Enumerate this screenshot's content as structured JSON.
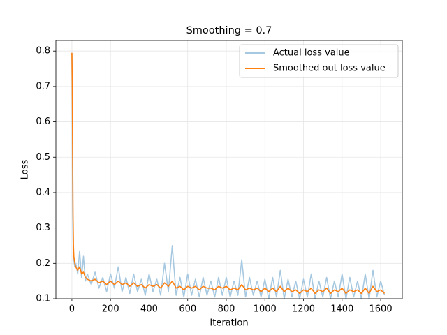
{
  "chart_data": {
    "type": "line",
    "title": "Smoothing = 0.7",
    "x_label": "Iteration",
    "y_label": "Loss",
    "x": [
      0,
      2,
      4,
      6,
      8,
      10,
      15,
      20,
      30,
      40,
      50,
      60,
      70,
      80,
      100,
      120,
      140,
      160,
      180,
      200,
      220,
      240,
      260,
      280,
      300,
      320,
      340,
      360,
      380,
      400,
      420,
      440,
      460,
      480,
      500,
      520,
      540,
      560,
      580,
      600,
      620,
      640,
      660,
      680,
      700,
      720,
      740,
      760,
      780,
      800,
      820,
      840,
      860,
      880,
      900,
      920,
      940,
      960,
      980,
      1000,
      1020,
      1040,
      1060,
      1080,
      1100,
      1120,
      1140,
      1160,
      1180,
      1200,
      1220,
      1240,
      1260,
      1280,
      1300,
      1320,
      1340,
      1360,
      1380,
      1400,
      1420,
      1440,
      1460,
      1480,
      1500,
      1520,
      1540,
      1560,
      1580,
      1600,
      1620
    ],
    "series": [
      {
        "name": "Actual loss value",
        "color": "#a6c8e0",
        "values": [
          0.795,
          0.55,
          0.35,
          0.27,
          0.23,
          0.21,
          0.19,
          0.2,
          0.17,
          0.235,
          0.16,
          0.22,
          0.15,
          0.17,
          0.14,
          0.175,
          0.13,
          0.16,
          0.12,
          0.17,
          0.13,
          0.19,
          0.12,
          0.16,
          0.115,
          0.17,
          0.12,
          0.155,
          0.11,
          0.17,
          0.12,
          0.155,
          0.11,
          0.2,
          0.12,
          0.25,
          0.11,
          0.16,
          0.105,
          0.17,
          0.11,
          0.155,
          0.105,
          0.16,
          0.11,
          0.15,
          0.105,
          0.16,
          0.11,
          0.16,
          0.105,
          0.15,
          0.11,
          0.21,
          0.105,
          0.16,
          0.11,
          0.15,
          0.105,
          0.155,
          0.1,
          0.16,
          0.105,
          0.18,
          0.1,
          0.155,
          0.105,
          0.15,
          0.1,
          0.155,
          0.105,
          0.17,
          0.1,
          0.15,
          0.105,
          0.16,
          0.1,
          0.15,
          0.105,
          0.17,
          0.1,
          0.16,
          0.105,
          0.15,
          0.1,
          0.17,
          0.1,
          0.18,
          0.105,
          0.15,
          0.11
        ]
      },
      {
        "name": "Smoothed out loss value",
        "color": "#ff7f0e",
        "values": [
          0.795,
          0.7,
          0.5,
          0.33,
          0.25,
          0.22,
          0.2,
          0.19,
          0.18,
          0.19,
          0.17,
          0.175,
          0.16,
          0.155,
          0.15,
          0.155,
          0.145,
          0.15,
          0.14,
          0.15,
          0.14,
          0.15,
          0.14,
          0.145,
          0.135,
          0.145,
          0.135,
          0.14,
          0.13,
          0.14,
          0.135,
          0.14,
          0.13,
          0.145,
          0.135,
          0.15,
          0.13,
          0.135,
          0.125,
          0.135,
          0.13,
          0.135,
          0.125,
          0.135,
          0.13,
          0.13,
          0.125,
          0.135,
          0.13,
          0.135,
          0.125,
          0.13,
          0.125,
          0.14,
          0.125,
          0.13,
          0.125,
          0.13,
          0.12,
          0.13,
          0.12,
          0.13,
          0.12,
          0.135,
          0.12,
          0.13,
          0.12,
          0.125,
          0.115,
          0.125,
          0.12,
          0.13,
          0.115,
          0.125,
          0.12,
          0.13,
          0.115,
          0.125,
          0.12,
          0.13,
          0.115,
          0.125,
          0.12,
          0.125,
          0.115,
          0.13,
          0.115,
          0.135,
          0.12,
          0.125,
          0.115
        ]
      }
    ],
    "xlim": [
      -83,
      1712
    ],
    "ylim": [
      0.1,
      0.83
    ],
    "xticks": [
      0,
      200,
      400,
      600,
      800,
      1000,
      1200,
      1400,
      1600
    ],
    "yticks": [
      0.1,
      0.2,
      0.3,
      0.4,
      0.5,
      0.6,
      0.7,
      0.8
    ],
    "grid": true,
    "legend": "upper right"
  }
}
